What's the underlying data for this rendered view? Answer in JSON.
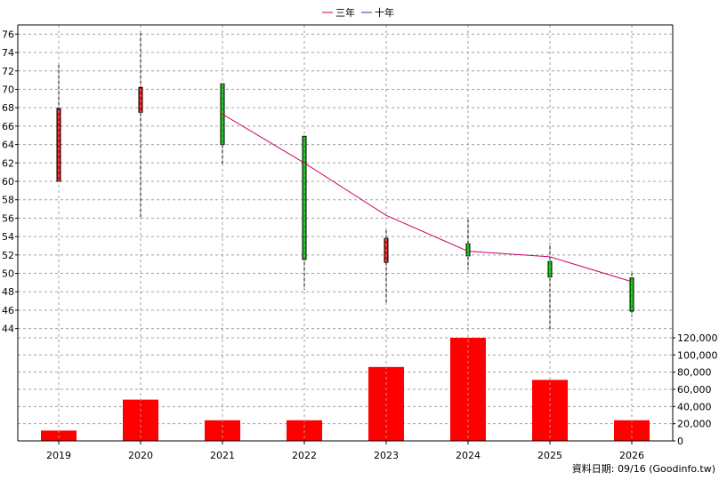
{
  "chart_data": {
    "type": "candlestick+bar",
    "legend": {
      "placement": "top-center",
      "items": [
        {
          "label": "三年",
          "color": "#cc0066"
        },
        {
          "label": "十年",
          "color": "#6a1b9a"
        }
      ]
    },
    "categories": [
      "2019",
      "2020",
      "2021",
      "2022",
      "2023",
      "2024",
      "2025",
      "2026"
    ],
    "price_axis": {
      "ylim": [
        43,
        77
      ],
      "ticks": [
        44,
        46,
        48,
        50,
        52,
        54,
        56,
        58,
        60,
        62,
        64,
        66,
        68,
        70,
        72,
        74,
        76
      ],
      "grid": true
    },
    "candles": [
      {
        "x": "2019",
        "open": 60.0,
        "close": 67.9,
        "high": 72.8,
        "low": 60.0,
        "color": "#ff0000"
      },
      {
        "x": "2020",
        "open": 67.5,
        "close": 70.2,
        "high": 76.2,
        "low": 55.9,
        "color": "#ff0000"
      },
      {
        "x": "2021",
        "open": 70.6,
        "close": 64.0,
        "high": 70.6,
        "low": 61.7,
        "color": "#00cc00"
      },
      {
        "x": "2022",
        "open": 64.9,
        "close": 51.5,
        "high": 64.9,
        "low": 48.2,
        "color": "#00cc00"
      },
      {
        "x": "2023",
        "open": 51.2,
        "close": 53.8,
        "high": 54.8,
        "low": 46.6,
        "color": "#ff0000"
      },
      {
        "x": "2024",
        "open": 53.2,
        "close": 51.9,
        "high": 56.0,
        "low": 50.4,
        "color": "#00cc00"
      },
      {
        "x": "2025",
        "open": 51.3,
        "close": 49.6,
        "high": 53.3,
        "low": 43.8,
        "color": "#00cc00"
      },
      {
        "x": "2026",
        "open": 49.5,
        "close": 45.9,
        "high": 50.2,
        "low": 45.3,
        "color": "#00cc00"
      }
    ],
    "three_year_line": {
      "x": [
        "2021",
        "2022",
        "2023",
        "2024",
        "2025",
        "2026"
      ],
      "values": [
        67.3,
        62.0,
        56.3,
        52.4,
        51.8,
        49.1
      ],
      "color": "#cc0066"
    },
    "volume_axis": {
      "ylim": [
        0,
        120000
      ],
      "ticks": [
        0,
        20000,
        40000,
        60000,
        80000,
        100000,
        120000
      ],
      "tick_labels": [
        "0",
        "20,000",
        "40,000",
        "60,000",
        "80,000",
        "100,000",
        "120,000"
      ],
      "grid": true
    },
    "volumes": [
      {
        "x": "2019",
        "value": 12000
      },
      {
        "x": "2020",
        "value": 48000
      },
      {
        "x": "2021",
        "value": 24000
      },
      {
        "x": "2022",
        "value": 24000
      },
      {
        "x": "2023",
        "value": 86000
      },
      {
        "x": "2024",
        "value": 120000
      },
      {
        "x": "2025",
        "value": 71000
      },
      {
        "x": "2026",
        "value": 24000
      }
    ],
    "volume_color": "#ff0000"
  },
  "footer": {
    "date_text": "資料日期: 09/16  (Goodinfo.tw)"
  }
}
